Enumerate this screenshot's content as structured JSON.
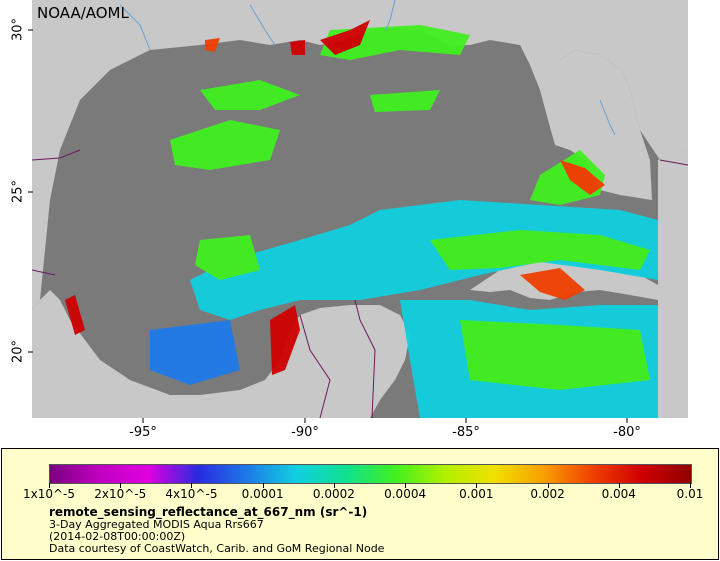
{
  "map": {
    "credit": "NOAA/AOML",
    "lat_labels": [
      "30°",
      "25°",
      "20°"
    ],
    "lon_labels": [
      "-95°",
      "-90°",
      "-85°",
      "-80°"
    ],
    "colors": {
      "ocean_nodata": "#7a7a7a",
      "land": "#c8c8c8",
      "border": "#6a1a5a",
      "river": "#6aa0d0"
    }
  },
  "legend": {
    "tick_labels": [
      "1x10^-5",
      "2x10^-5",
      "4x10^-5",
      "0.0001",
      "0.0002",
      "0.0004",
      "0.001",
      "0.002",
      "0.004",
      "0.01"
    ],
    "variable": "remote_sensing_reflectance_at_667_nm (sr^-1)",
    "product": "3-Day Aggregated MODIS Aqua Rrs667",
    "date": "(2014-02-08T00:00:00Z)",
    "source": "Data courtesy of CoastWatch, Carib. and GoM Regional Node",
    "palette": [
      "#7a0080",
      "#c000c0",
      "#e000e0",
      "#2a2ae0",
      "#1e7ae8",
      "#10d0e0",
      "#10e090",
      "#40f020",
      "#b0f000",
      "#f0e000",
      "#f8a000",
      "#f04000",
      "#d00000",
      "#900000"
    ],
    "colors": {
      "panel_bg": "#ffffcc"
    }
  }
}
